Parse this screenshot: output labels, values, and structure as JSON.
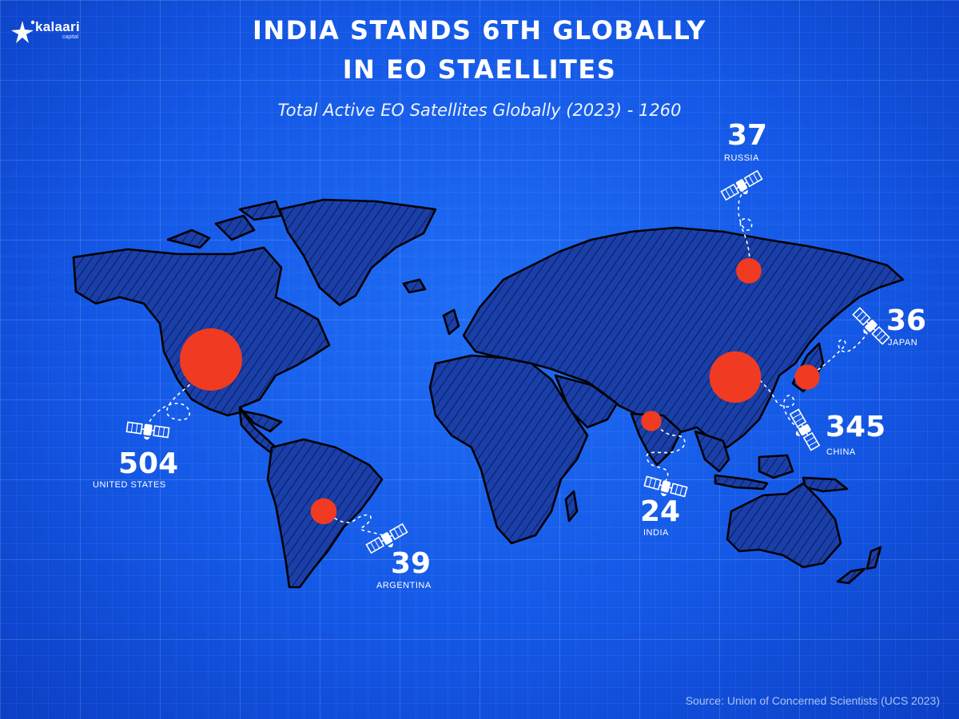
{
  "brand": {
    "name": "kalaari",
    "sub": "capital"
  },
  "title": {
    "line1": "INDIA STANDS 6TH GLOBALLY",
    "line2": "IN EO STAELLITES"
  },
  "subtitle": "Total Active EO Satellites Globally (2023) - 1260",
  "countries": [
    {
      "name": "UNITED STATES",
      "value": 504
    },
    {
      "name": "CHINA",
      "value": 345
    },
    {
      "name": "ARGENTINA",
      "value": 39
    },
    {
      "name": "RUSSIA",
      "value": 37
    },
    {
      "name": "JAPAN",
      "value": 36
    },
    {
      "name": "INDIA",
      "value": 24
    }
  ],
  "source": "Source: Union of Concerned Scientists (UCS 2023)",
  "colors": {
    "background": "#1458e6",
    "land": "#1a3fa8",
    "outline": "#000000",
    "bubble": "#f03a22"
  },
  "icons": [
    "satellite-icon",
    "kalaari-logo-star"
  ]
}
